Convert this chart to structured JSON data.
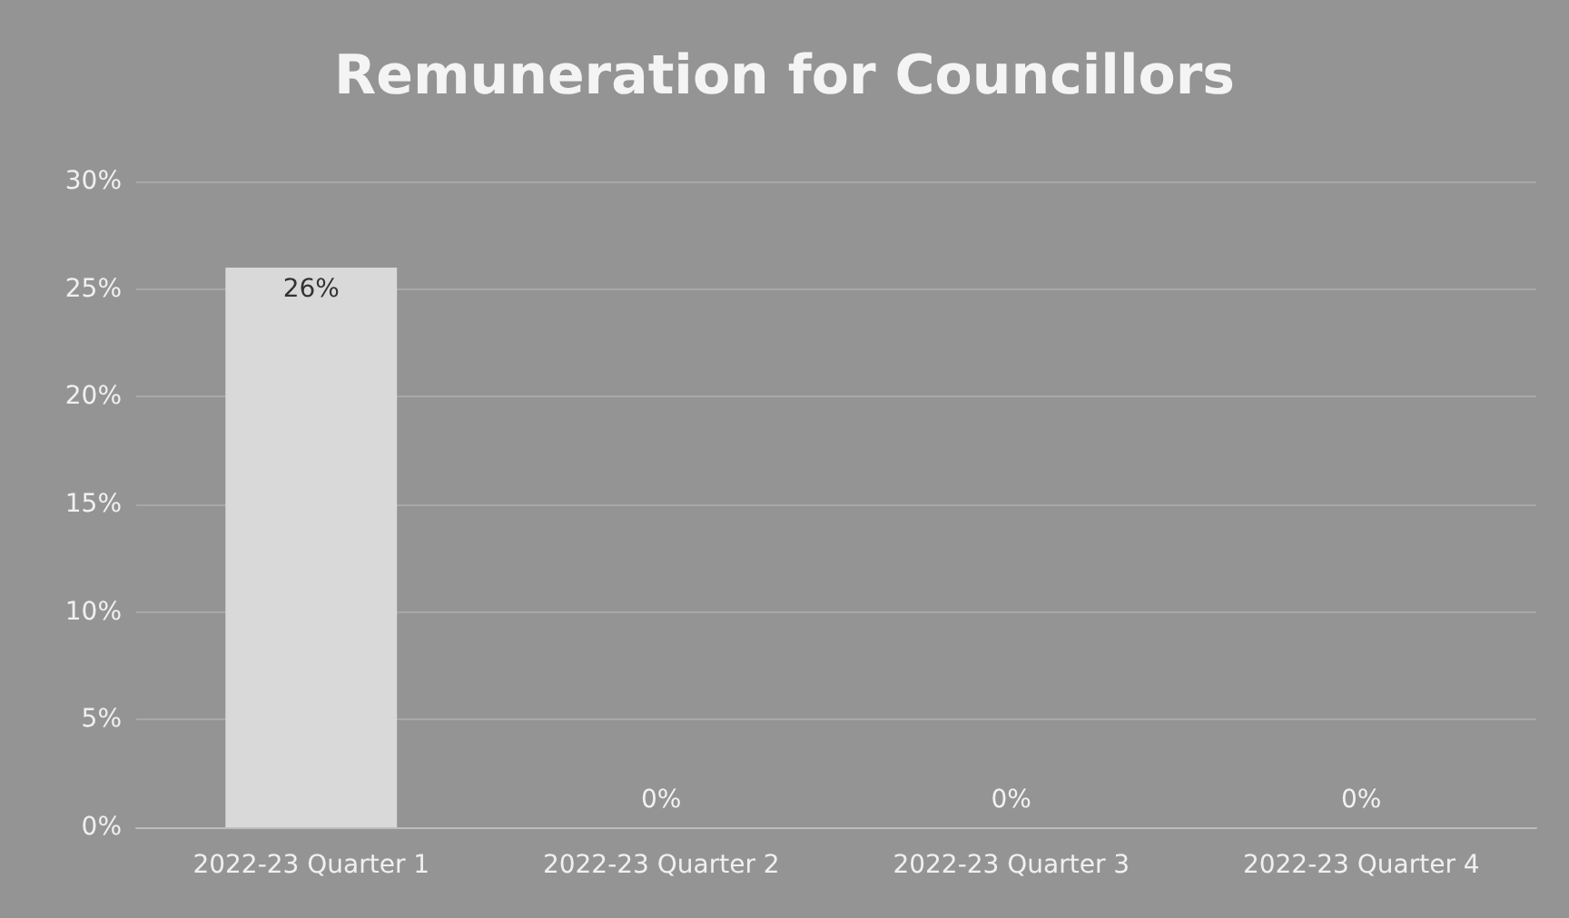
{
  "chart_data": {
    "type": "bar",
    "title": "Remuneration for Councillors",
    "categories": [
      "2022-23 Quarter 1",
      "2022-23 Quarter 2",
      "2022-23 Quarter 3",
      "2022-23 Quarter 4"
    ],
    "values": [
      26,
      0,
      0,
      0
    ],
    "color": "#d9d9d9",
    "value_labels": [
      "26%",
      "0%",
      "0%",
      "0%"
    ],
    "ylim": [
      0,
      30
    ],
    "yticks": [
      {
        "value": 0,
        "label": "0%"
      },
      {
        "value": 5,
        "label": "5%"
      },
      {
        "value": 10,
        "label": "10%"
      },
      {
        "value": 15,
        "label": "15%"
      },
      {
        "value": 20,
        "label": "20%"
      },
      {
        "value": 25,
        "label": "25%"
      },
      {
        "value": 30,
        "label": "30%"
      }
    ],
    "grid": true
  }
}
